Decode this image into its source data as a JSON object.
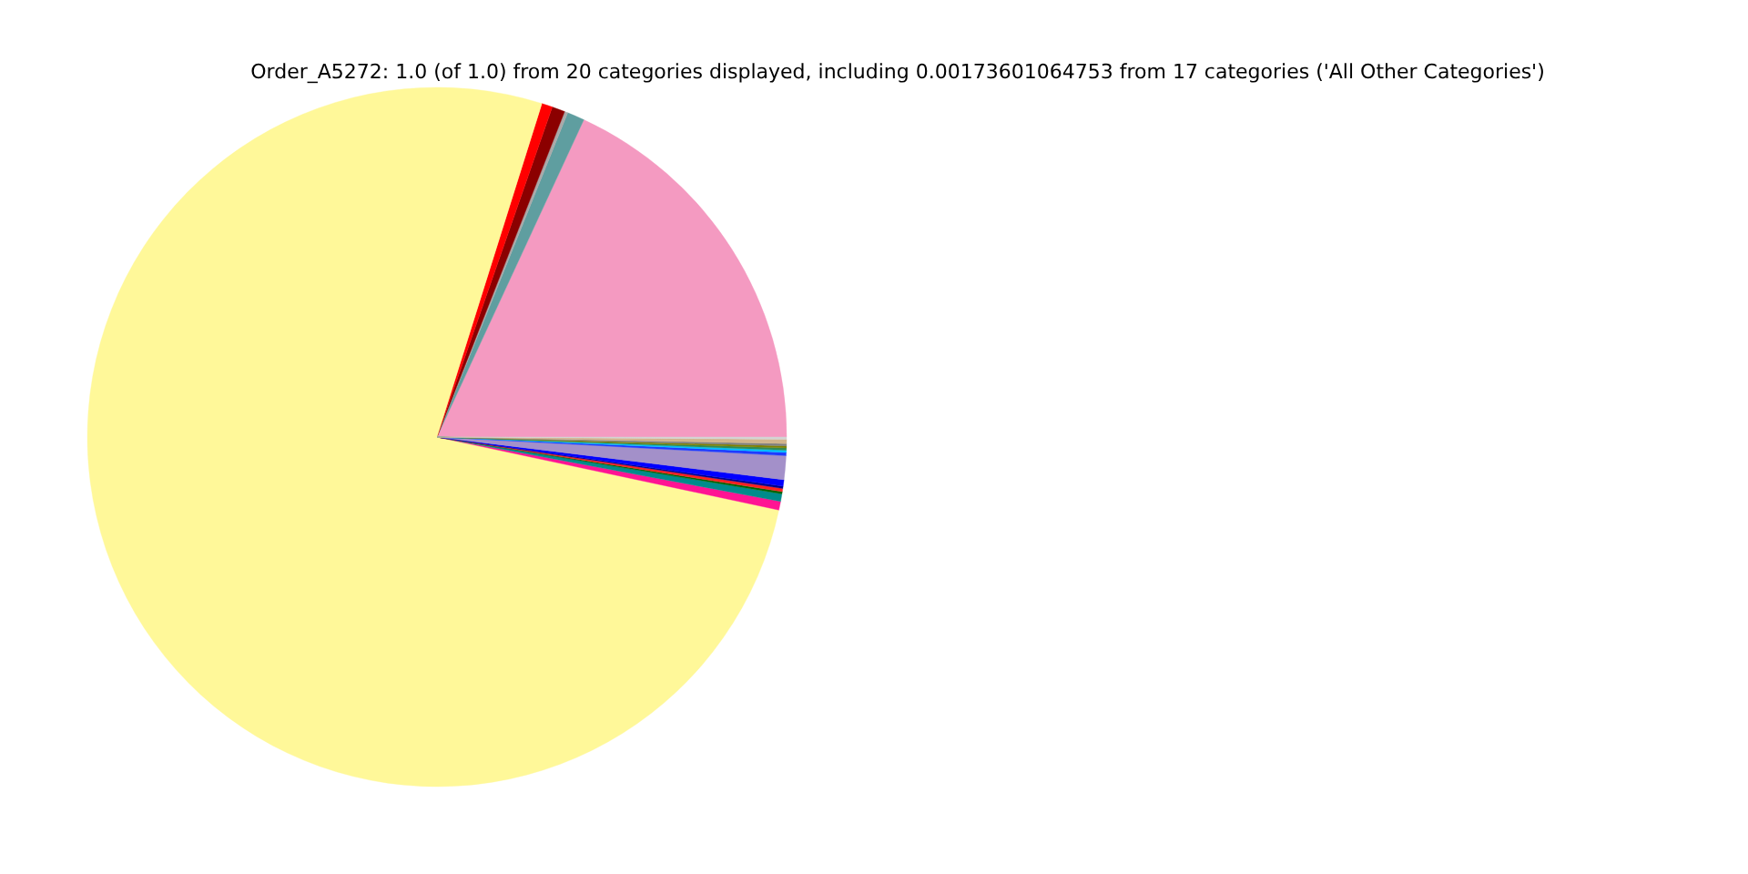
{
  "chart_data": {
    "type": "pie",
    "title": "Order_A5272: 1.0 (of 1.0) from 20 categories displayed, including 0.00173601064753 from 17 categories ('All Other Categories')",
    "categories": [
      null,
      null,
      null,
      null,
      null,
      null,
      null,
      null,
      null,
      null,
      null,
      null,
      null,
      null,
      null,
      null,
      null,
      null,
      null,
      null
    ],
    "values": [
      18.1,
      0.8,
      0.15,
      0.6,
      0.5,
      76.5,
      0.4,
      0.35,
      0.1,
      0.15,
      0.1,
      0.3,
      1.1,
      0.15,
      0.1,
      0.1,
      0.1,
      0.1,
      0.2,
      0.1
    ],
    "colors": [
      "#f49ac1",
      "#5f9ea0",
      "#a9a9a9",
      "#8b0000",
      "#ff0000",
      "#fff899",
      "#ff1493",
      "#008b8b",
      "#006400",
      "#ff2020",
      "#00008b",
      "#0000ff",
      "#a390c9",
      "#1e3cff",
      "#00bfff",
      "#2e8b57",
      "#808000",
      "#808080",
      "#d2b48c",
      "#d3d3d3"
    ]
  }
}
